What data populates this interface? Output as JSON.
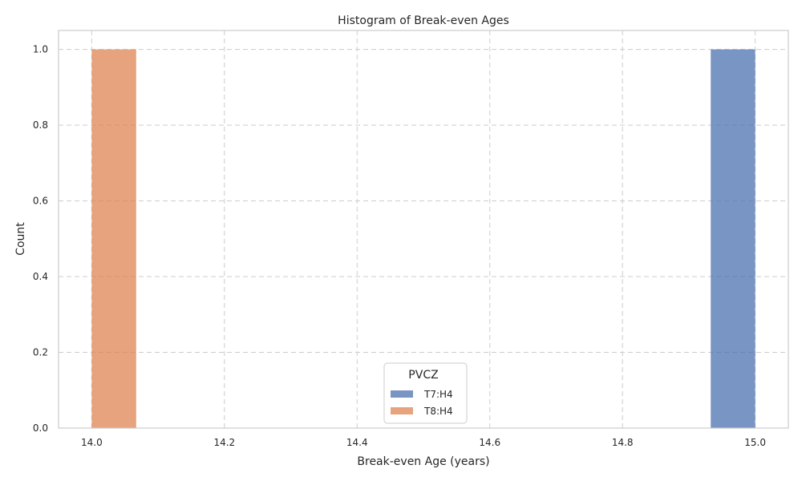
{
  "chart_data": {
    "type": "bar",
    "title": "Histogram of Break-even Ages",
    "xlabel": "Break-even Age (years)",
    "ylabel": "Count",
    "xlim": [
      13.95,
      15.05
    ],
    "ylim": [
      0,
      1.05
    ],
    "xticks": [
      "14.0",
      "14.2",
      "14.4",
      "14.6",
      "14.8",
      "15.0"
    ],
    "yticks": [
      "0.0",
      "0.2",
      "0.4",
      "0.6",
      "0.8",
      "1.0"
    ],
    "grid": true,
    "legend": {
      "title": "PVCZ",
      "position": "lower center"
    },
    "series": [
      {
        "name": "T7:H4",
        "color": "#4c72b0",
        "bins": [
          {
            "x0": 14.933,
            "x1": 15.0,
            "count": 1
          }
        ]
      },
      {
        "name": "T8:H4",
        "color": "#dd8452",
        "bins": [
          {
            "x0": 14.0,
            "x1": 14.067,
            "count": 1
          }
        ]
      }
    ]
  }
}
